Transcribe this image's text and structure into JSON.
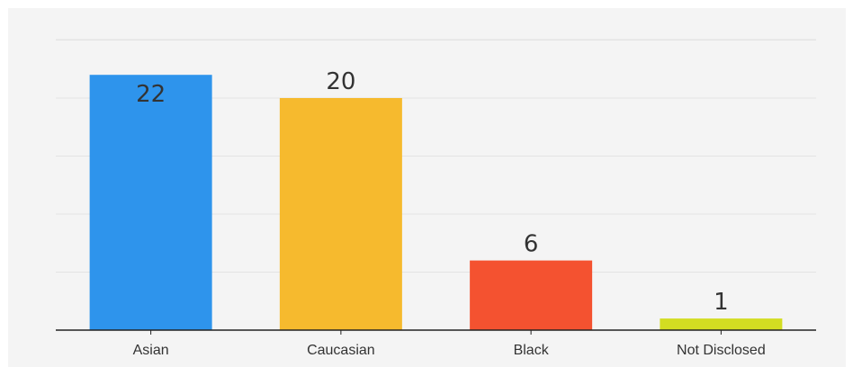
{
  "chart_data": {
    "type": "bar",
    "categories": [
      "Asian",
      "Caucasian",
      "Black",
      "Not Disclosed"
    ],
    "values": [
      22,
      20,
      6,
      1
    ],
    "colors": [
      "#2e94ec",
      "#f6ba2e",
      "#f45230",
      "#d3dd22"
    ],
    "title": "",
    "xlabel": "",
    "ylabel": "",
    "ylim": [
      0,
      25
    ],
    "grid": true,
    "legend": "none"
  }
}
